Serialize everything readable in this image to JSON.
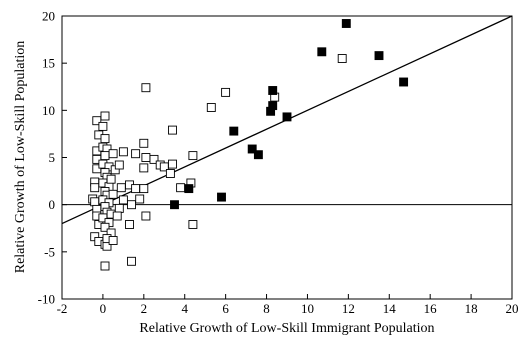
{
  "chart_data": {
    "type": "scatter",
    "title": "",
    "xlabel": "Relative Growth of Low-Skill Immigrant Population",
    "ylabel": "Relative Growth of Low-Skill Population",
    "xlim": [
      -2,
      20
    ],
    "ylim": [
      -10,
      20
    ],
    "xticks": [
      "-2",
      "0",
      "2",
      "4",
      "6",
      "8",
      "10",
      "12",
      "14",
      "16",
      "18",
      "20"
    ],
    "yticks": [
      "20",
      "15",
      "10",
      "5",
      "0",
      "-5",
      "-10"
    ],
    "zero_line": true,
    "grid": false,
    "fit_line": {
      "x": [
        -2,
        20
      ],
      "y": [
        -2.0,
        20.0
      ]
    },
    "series": [
      {
        "marker": "hollow-square",
        "color": "#000000",
        "points": [
          [
            -0.3,
            8.9
          ],
          [
            -0.2,
            7.4
          ],
          [
            -0.3,
            5.7
          ],
          [
            -0.3,
            4.8
          ],
          [
            -0.3,
            3.8
          ],
          [
            -0.4,
            2.4
          ],
          [
            -0.4,
            1.8
          ],
          [
            -0.5,
            0.6
          ],
          [
            -0.4,
            0.3
          ],
          [
            -0.3,
            -0.5
          ],
          [
            -0.3,
            -1.2
          ],
          [
            -0.2,
            -2.1
          ],
          [
            -0.4,
            -3.4
          ],
          [
            -0.2,
            -3.9
          ],
          [
            0.1,
            -4.2
          ],
          [
            0.2,
            -4.4
          ],
          [
            0.1,
            -6.5
          ],
          [
            0.1,
            9.4
          ],
          [
            0.0,
            8.3
          ],
          [
            0.1,
            7.0
          ],
          [
            0.0,
            6.1
          ],
          [
            0.2,
            5.9
          ],
          [
            0.1,
            5.2
          ],
          [
            0.0,
            4.3
          ],
          [
            0.3,
            4.0
          ],
          [
            0.1,
            3.4
          ],
          [
            0.2,
            2.9
          ],
          [
            0.0,
            2.3
          ],
          [
            0.3,
            1.9
          ],
          [
            0.1,
            1.4
          ],
          [
            0.2,
            1.0
          ],
          [
            0.0,
            0.5
          ],
          [
            0.3,
            0.2
          ],
          [
            0.1,
            -0.2
          ],
          [
            0.2,
            -0.8
          ],
          [
            0.0,
            -1.4
          ],
          [
            0.3,
            -1.9
          ],
          [
            0.1,
            -2.4
          ],
          [
            0.4,
            -3.0
          ],
          [
            0.2,
            -3.6
          ],
          [
            0.5,
            -3.8
          ],
          [
            0.4,
            -1.0
          ],
          [
            0.5,
            1.1
          ],
          [
            0.4,
            2.7
          ],
          [
            0.6,
            3.7
          ],
          [
            0.5,
            5.4
          ],
          [
            0.8,
            4.2
          ],
          [
            0.9,
            1.8
          ],
          [
            1.0,
            0.5
          ],
          [
            0.8,
            -0.4
          ],
          [
            0.7,
            -1.2
          ],
          [
            1.0,
            5.6
          ],
          [
            1.3,
            2.1
          ],
          [
            1.4,
            0.0
          ],
          [
            1.3,
            -2.1
          ],
          [
            1.4,
            -6.0
          ],
          [
            1.6,
            1.7
          ],
          [
            1.6,
            5.4
          ],
          [
            1.8,
            0.6
          ],
          [
            2.0,
            1.7
          ],
          [
            2.0,
            3.9
          ],
          [
            2.0,
            6.5
          ],
          [
            2.1,
            5.0
          ],
          [
            2.1,
            -1.2
          ],
          [
            2.1,
            12.4
          ],
          [
            2.5,
            4.8
          ],
          [
            2.8,
            4.2
          ],
          [
            3.0,
            4.0
          ],
          [
            3.3,
            3.3
          ],
          [
            3.4,
            4.3
          ],
          [
            3.4,
            7.9
          ],
          [
            3.8,
            1.8
          ],
          [
            4.3,
            2.3
          ],
          [
            4.4,
            -2.1
          ],
          [
            4.4,
            5.2
          ],
          [
            5.3,
            10.3
          ],
          [
            6.0,
            11.9
          ],
          [
            8.4,
            11.4
          ],
          [
            11.7,
            15.5
          ]
        ]
      },
      {
        "marker": "filled-square",
        "color": "#000000",
        "points": [
          [
            3.5,
            0.0
          ],
          [
            4.2,
            1.7
          ],
          [
            5.8,
            0.8
          ],
          [
            6.4,
            7.8
          ],
          [
            7.3,
            5.9
          ],
          [
            7.6,
            5.3
          ],
          [
            8.2,
            9.9
          ],
          [
            8.3,
            10.5
          ],
          [
            8.3,
            12.1
          ],
          [
            9.0,
            9.3
          ],
          [
            10.7,
            16.2
          ],
          [
            11.9,
            19.2
          ],
          [
            13.5,
            15.8
          ],
          [
            14.7,
            13.0
          ]
        ]
      }
    ]
  }
}
